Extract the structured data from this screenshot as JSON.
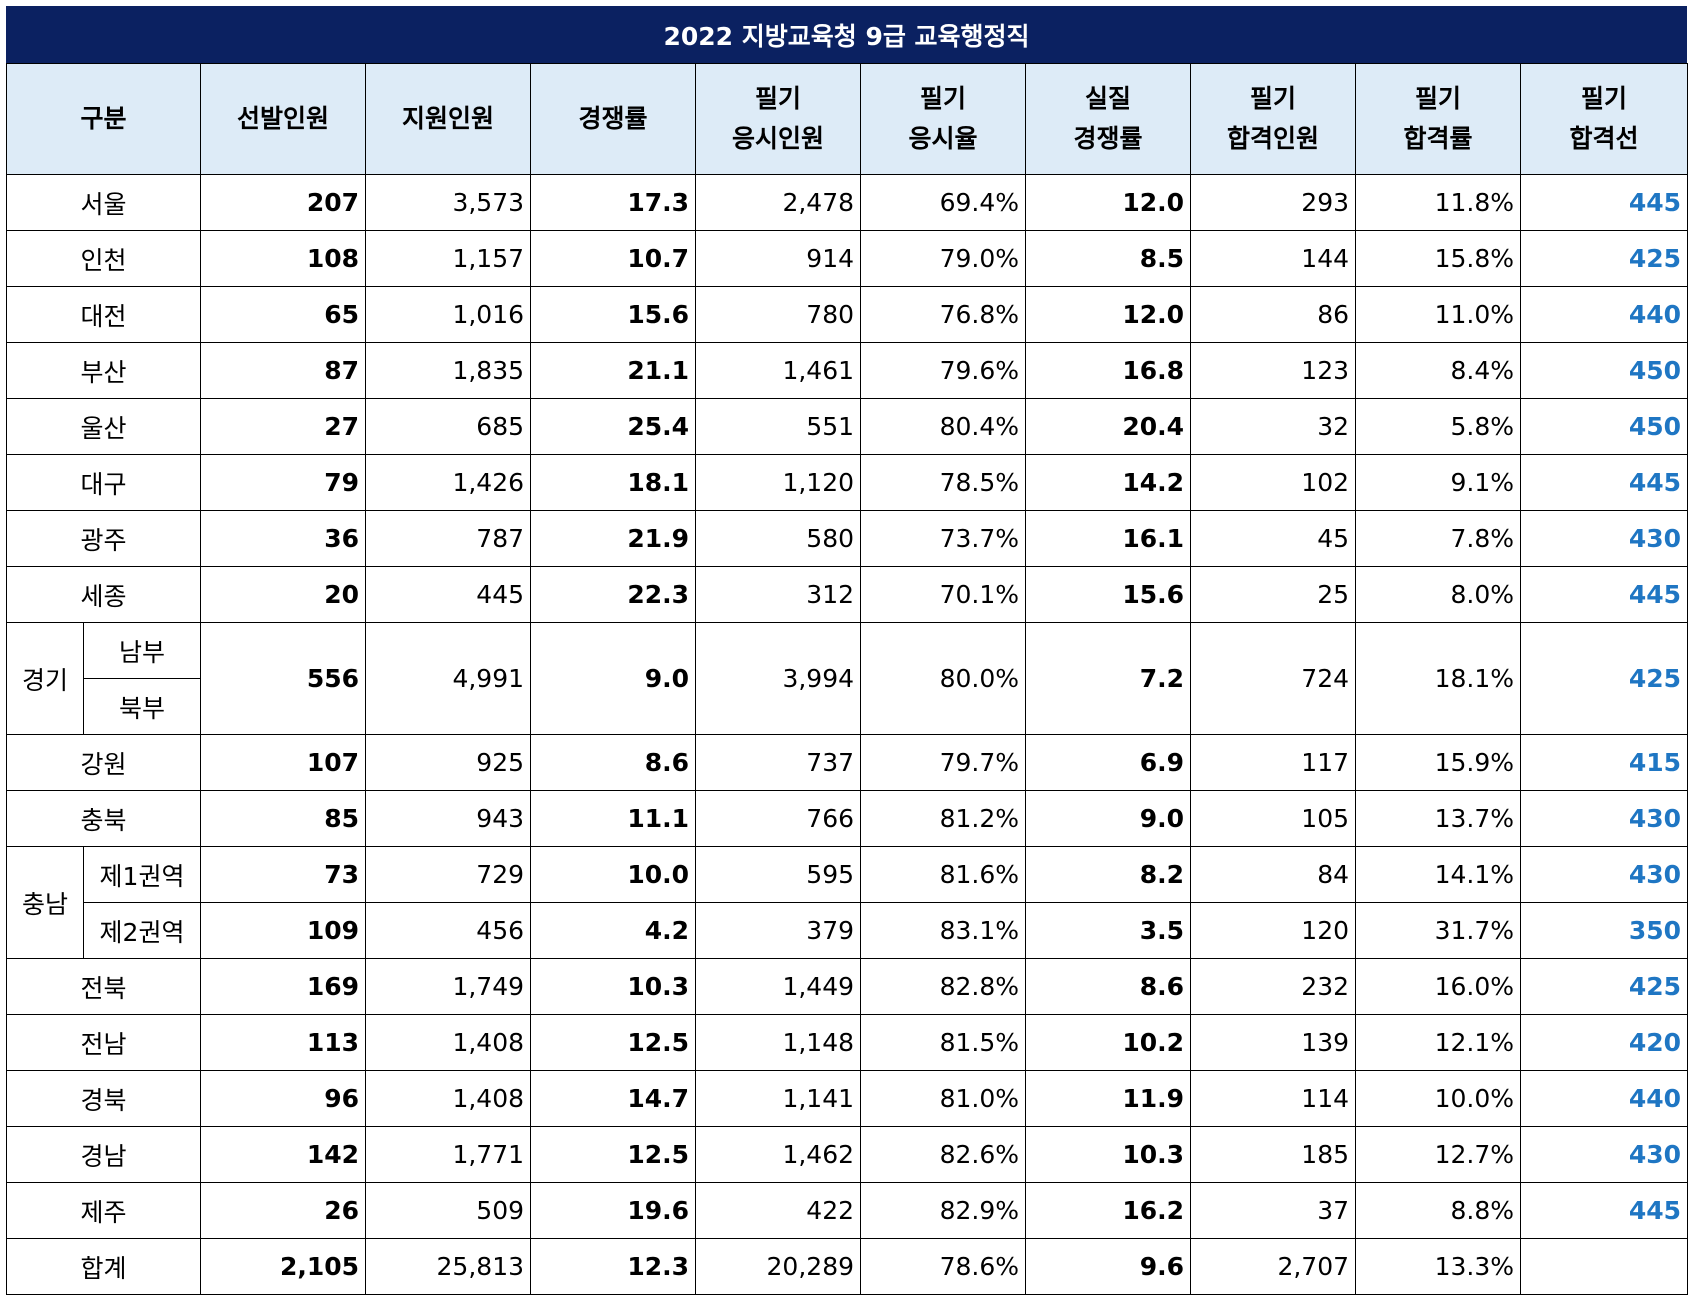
{
  "title": "2022 지방교육청 9급  교육행정직",
  "headers": [
    [
      "구분"
    ],
    [
      "선발인원"
    ],
    [
      "지원인원"
    ],
    [
      "경쟁률"
    ],
    [
      "필기",
      "응시인원"
    ],
    [
      "필기",
      "응시율"
    ],
    [
      "실질",
      "경쟁률"
    ],
    [
      "필기",
      "합격인원"
    ],
    [
      "필기",
      "합격률"
    ],
    [
      "필기",
      "합격선"
    ]
  ],
  "rows": [
    {
      "name": "서울",
      "v": [
        "207",
        "3,573",
        "17.3",
        "2,478",
        "69.4%",
        "12.0",
        "293",
        "11.8%",
        "445"
      ]
    },
    {
      "name": "인천",
      "v": [
        "108",
        "1,157",
        "10.7",
        "914",
        "79.0%",
        "8.5",
        "144",
        "15.8%",
        "425"
      ]
    },
    {
      "name": "대전",
      "v": [
        "65",
        "1,016",
        "15.6",
        "780",
        "76.8%",
        "12.0",
        "86",
        "11.0%",
        "440"
      ]
    },
    {
      "name": "부산",
      "v": [
        "87",
        "1,835",
        "21.1",
        "1,461",
        "79.6%",
        "16.8",
        "123",
        "8.4%",
        "450"
      ]
    },
    {
      "name": "울산",
      "v": [
        "27",
        "685",
        "25.4",
        "551",
        "80.4%",
        "20.4",
        "32",
        "5.8%",
        "450"
      ]
    },
    {
      "name": "대구",
      "v": [
        "79",
        "1,426",
        "18.1",
        "1,120",
        "78.5%",
        "14.2",
        "102",
        "9.1%",
        "445"
      ]
    },
    {
      "name": "광주",
      "v": [
        "36",
        "787",
        "21.9",
        "580",
        "73.7%",
        "16.1",
        "45",
        "7.8%",
        "430"
      ]
    },
    {
      "name": "세종",
      "v": [
        "20",
        "445",
        "22.3",
        "312",
        "70.1%",
        "15.6",
        "25",
        "8.0%",
        "445"
      ]
    }
  ],
  "gyeonggi": {
    "name": "경기",
    "subs": [
      "남부",
      "북부"
    ],
    "v": [
      "556",
      "4,991",
      "9.0",
      "3,994",
      "80.0%",
      "7.2",
      "724",
      "18.1%",
      "425"
    ]
  },
  "rows2": [
    {
      "name": "강원",
      "v": [
        "107",
        "925",
        "8.6",
        "737",
        "79.7%",
        "6.9",
        "117",
        "15.9%",
        "415"
      ]
    },
    {
      "name": "충북",
      "v": [
        "85",
        "943",
        "11.1",
        "766",
        "81.2%",
        "9.0",
        "105",
        "13.7%",
        "430"
      ]
    }
  ],
  "chungnam": {
    "name": "충남",
    "subs": [
      {
        "name": "제1권역",
        "v": [
          "73",
          "729",
          "10.0",
          "595",
          "81.6%",
          "8.2",
          "84",
          "14.1%",
          "430"
        ]
      },
      {
        "name": "제2권역",
        "v": [
          "109",
          "456",
          "4.2",
          "379",
          "83.1%",
          "3.5",
          "120",
          "31.7%",
          "350"
        ]
      }
    ]
  },
  "rows3": [
    {
      "name": "전북",
      "v": [
        "169",
        "1,749",
        "10.3",
        "1,449",
        "82.8%",
        "8.6",
        "232",
        "16.0%",
        "425"
      ]
    },
    {
      "name": "전남",
      "v": [
        "113",
        "1,408",
        "12.5",
        "1,148",
        "81.5%",
        "10.2",
        "139",
        "12.1%",
        "420"
      ]
    },
    {
      "name": "경북",
      "v": [
        "96",
        "1,408",
        "14.7",
        "1,141",
        "81.0%",
        "11.9",
        "114",
        "10.0%",
        "440"
      ]
    },
    {
      "name": "경남",
      "v": [
        "142",
        "1,771",
        "12.5",
        "1,462",
        "82.6%",
        "10.3",
        "185",
        "12.7%",
        "430"
      ]
    },
    {
      "name": "제주",
      "v": [
        "26",
        "509",
        "19.6",
        "422",
        "82.9%",
        "16.2",
        "37",
        "8.8%",
        "445"
      ]
    }
  ],
  "total": {
    "name": "합계",
    "v": [
      "2,105",
      "25,813",
      "12.3",
      "20,289",
      "78.6%",
      "9.6",
      "2,707",
      "13.3%",
      ""
    ]
  },
  "colors": {
    "title_bg": "#0b2161",
    "header_bg": "#ddebf7",
    "cutoff": "#1f76c3"
  }
}
